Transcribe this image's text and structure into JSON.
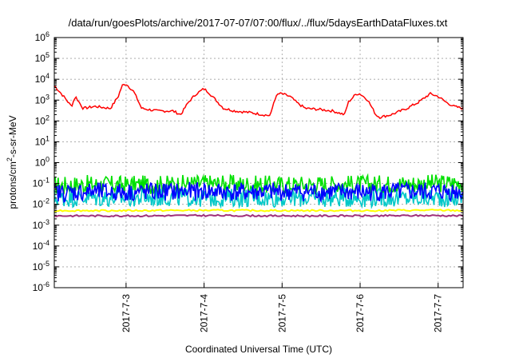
{
  "chart_data": {
    "type": "line",
    "title": "/data/run/goesPlots/archive/2017-07-07/07:00/flux/../flux/5daysEarthDataFluxes.txt",
    "xlabel": "Coordinated Universal Time (UTC)",
    "ylabel_parts": {
      "pre": "protons/cm",
      "sup": "2",
      "post": "-s-sr-MeV"
    },
    "y_scale": "log",
    "ylim_exp": [
      -6,
      6
    ],
    "y_tick_exponents": [
      -6,
      -5,
      -4,
      -3,
      -2,
      -1,
      0,
      1,
      2,
      3,
      4,
      5,
      6
    ],
    "xlim_days": [
      2.08,
      7.32
    ],
    "x_ticks": [
      {
        "label": "2017-7-3",
        "day": 3
      },
      {
        "label": "2017-7-4",
        "day": 4
      },
      {
        "label": "2017-7-5",
        "day": 5
      },
      {
        "label": "2017-7-6",
        "day": 6
      },
      {
        "label": "2017-7-7",
        "day": 7
      }
    ],
    "grid": true,
    "series": [
      {
        "color": "#00e000",
        "style": "band",
        "points": [
          [
            2.08,
            0.08
          ],
          [
            2.5,
            0.09
          ],
          [
            3.0,
            0.085
          ],
          [
            3.5,
            0.09
          ],
          [
            4.0,
            0.1
          ],
          [
            4.5,
            0.09
          ],
          [
            5.0,
            0.085
          ],
          [
            5.5,
            0.09
          ],
          [
            6.0,
            0.09
          ],
          [
            6.5,
            0.095
          ],
          [
            7.0,
            0.1
          ],
          [
            7.32,
            0.11
          ]
        ]
      },
      {
        "color": "#00c8c8",
        "style": "band",
        "points": [
          [
            2.08,
            0.02
          ],
          [
            2.5,
            0.021
          ],
          [
            3.0,
            0.02
          ],
          [
            3.5,
            0.022
          ],
          [
            4.0,
            0.02
          ],
          [
            4.5,
            0.021
          ],
          [
            5.0,
            0.02
          ],
          [
            5.5,
            0.02
          ],
          [
            6.0,
            0.021
          ],
          [
            6.5,
            0.02
          ],
          [
            7.0,
            0.021
          ],
          [
            7.32,
            0.02
          ]
        ]
      },
      {
        "color": "#0000ff",
        "style": "band",
        "points": [
          [
            2.08,
            0.035
          ],
          [
            2.5,
            0.04
          ],
          [
            3.0,
            0.038
          ],
          [
            3.5,
            0.04
          ],
          [
            4.0,
            0.042
          ],
          [
            4.5,
            0.038
          ],
          [
            5.0,
            0.04
          ],
          [
            5.5,
            0.04
          ],
          [
            6.0,
            0.038
          ],
          [
            6.5,
            0.04
          ],
          [
            7.0,
            0.041
          ],
          [
            7.32,
            0.042
          ]
        ]
      },
      {
        "color": "#ffff00",
        "style": "line",
        "points": [
          [
            2.08,
            0.005
          ],
          [
            3.0,
            0.005
          ],
          [
            4.0,
            0.0051
          ],
          [
            5.0,
            0.005
          ],
          [
            6.0,
            0.005
          ],
          [
            7.0,
            0.0052
          ],
          [
            7.32,
            0.005
          ]
        ]
      },
      {
        "color": "#a0307a",
        "style": "line",
        "points": [
          [
            2.08,
            0.0028
          ],
          [
            3.0,
            0.0028
          ],
          [
            4.0,
            0.0029
          ],
          [
            5.0,
            0.0028
          ],
          [
            6.0,
            0.0028
          ],
          [
            7.0,
            0.0029
          ],
          [
            7.32,
            0.0028
          ]
        ]
      },
      {
        "color": "#ff0000",
        "style": "line",
        "points": [
          [
            2.08,
            5000
          ],
          [
            2.2,
            1500
          ],
          [
            2.3,
            500
          ],
          [
            2.35,
            1500
          ],
          [
            2.45,
            400
          ],
          [
            2.6,
            500
          ],
          [
            2.8,
            400
          ],
          [
            2.9,
            1500
          ],
          [
            2.95,
            5000
          ],
          [
            3.0,
            6000
          ],
          [
            3.1,
            2500
          ],
          [
            3.2,
            400
          ],
          [
            3.4,
            300
          ],
          [
            3.6,
            300
          ],
          [
            3.7,
            200
          ],
          [
            3.8,
            800
          ],
          [
            3.9,
            2000
          ],
          [
            4.0,
            3500
          ],
          [
            4.05,
            2500
          ],
          [
            4.15,
            1000
          ],
          [
            4.25,
            400
          ],
          [
            4.4,
            300
          ],
          [
            4.6,
            250
          ],
          [
            4.75,
            200
          ],
          [
            4.85,
            180
          ],
          [
            4.9,
            1000
          ],
          [
            4.95,
            2000
          ],
          [
            5.0,
            2000
          ],
          [
            5.1,
            1500
          ],
          [
            5.2,
            700
          ],
          [
            5.3,
            400
          ],
          [
            5.5,
            350
          ],
          [
            5.65,
            300
          ],
          [
            5.8,
            200
          ],
          [
            5.85,
            800
          ],
          [
            5.95,
            2000
          ],
          [
            6.0,
            2000
          ],
          [
            6.1,
            1000
          ],
          [
            6.2,
            200
          ],
          [
            6.25,
            150
          ],
          [
            6.4,
            200
          ],
          [
            6.6,
            400
          ],
          [
            6.75,
            800
          ],
          [
            6.85,
            1500
          ],
          [
            6.9,
            2000
          ],
          [
            7.0,
            1500
          ],
          [
            7.1,
            800
          ],
          [
            7.2,
            500
          ],
          [
            7.32,
            400
          ]
        ]
      }
    ]
  }
}
